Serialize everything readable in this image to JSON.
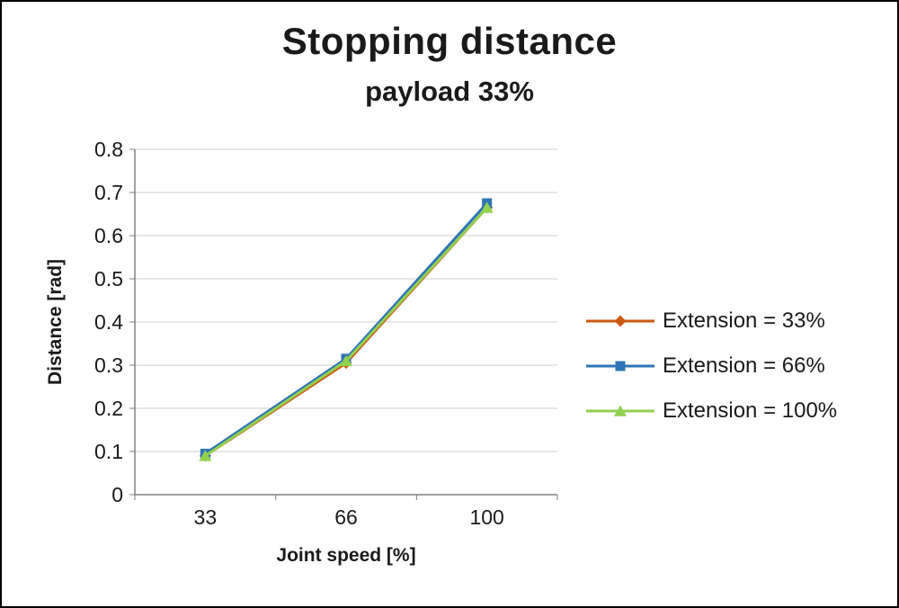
{
  "chart_data": {
    "type": "line",
    "title": "Stopping distance",
    "subtitle": "payload 33%",
    "xlabel": "Joint speed [%]",
    "ylabel": "Distance [rad]",
    "categories": [
      "33",
      "66",
      "100"
    ],
    "series": [
      {
        "name": "Extension = 33%",
        "values": [
          0.09,
          0.305,
          0.665
        ],
        "color": "#CC5A12",
        "marker": "diamond"
      },
      {
        "name": "Extension = 66%",
        "values": [
          0.095,
          0.315,
          0.675
        ],
        "color": "#2E74B5",
        "marker": "square"
      },
      {
        "name": "Extension = 100%",
        "values": [
          0.09,
          0.31,
          0.665
        ],
        "color": "#92D050",
        "marker": "triangle"
      }
    ],
    "ylim": [
      0,
      0.8
    ],
    "ytick_step": 0.1,
    "yticks": [
      "0",
      "0.1",
      "0.2",
      "0.3",
      "0.4",
      "0.5",
      "0.6",
      "0.7",
      "0.8"
    ],
    "grid": "horizontal",
    "legend_position": "right"
  }
}
